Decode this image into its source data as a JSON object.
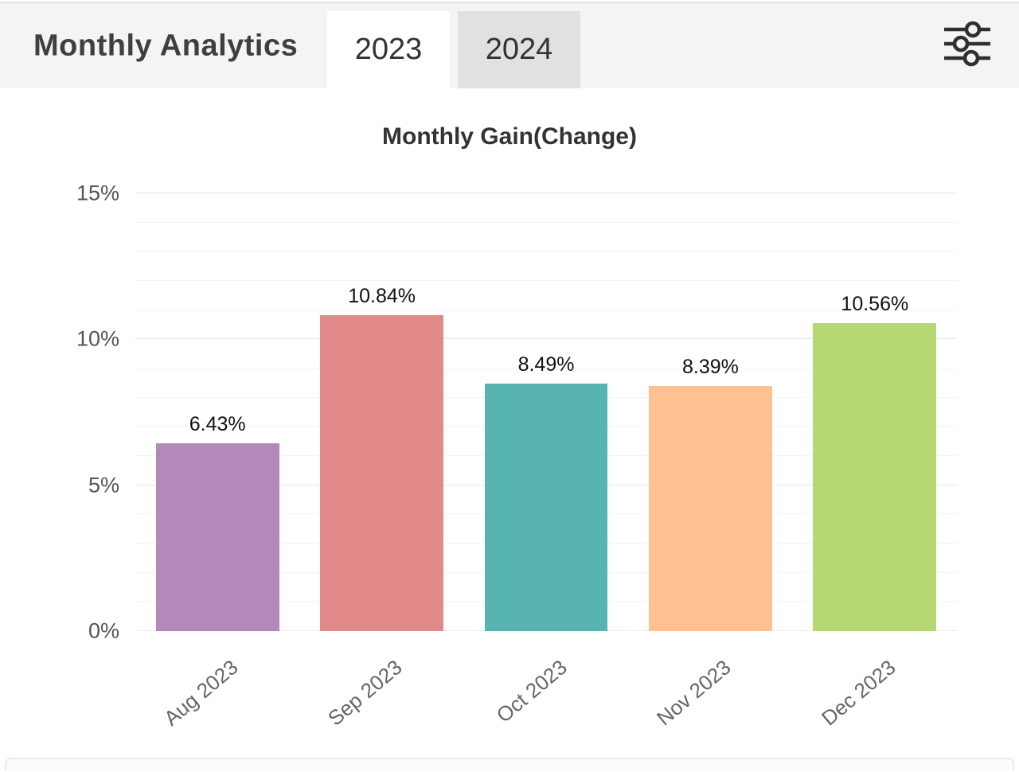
{
  "header": {
    "title": "Monthly Analytics",
    "tabs": [
      {
        "label": "2023",
        "active": true
      },
      {
        "label": "2024",
        "active": false
      }
    ],
    "filter_icon": "sliders-icon"
  },
  "chart_data": {
    "type": "bar",
    "title": "Monthly Gain(Change)",
    "categories": [
      "Aug 2023",
      "Sep 2023",
      "Oct 2023",
      "Nov 2023",
      "Dec 2023"
    ],
    "values": [
      6.43,
      10.84,
      8.49,
      8.39,
      10.56
    ],
    "value_labels": [
      "6.43%",
      "10.84%",
      "8.49%",
      "8.39%",
      "10.56%"
    ],
    "bar_colors": [
      "#b289b8",
      "#e28989",
      "#58b4b1",
      "#ffc192",
      "#b7d774"
    ],
    "ylim": [
      0,
      15
    ],
    "ytick_values": [
      0,
      5,
      10,
      15
    ],
    "ytick_labels": [
      "0%",
      "5%",
      "10%",
      "15%"
    ],
    "minor_grid_step": 1,
    "grid": true,
    "legend": false,
    "xlabel": "",
    "ylabel": ""
  },
  "colors": {
    "header_bg": "#f4f4f4",
    "active_tab_bg": "#ffffff",
    "inactive_tab_bg": "#e1e1e1",
    "icon_color": "#2f2f2f"
  }
}
